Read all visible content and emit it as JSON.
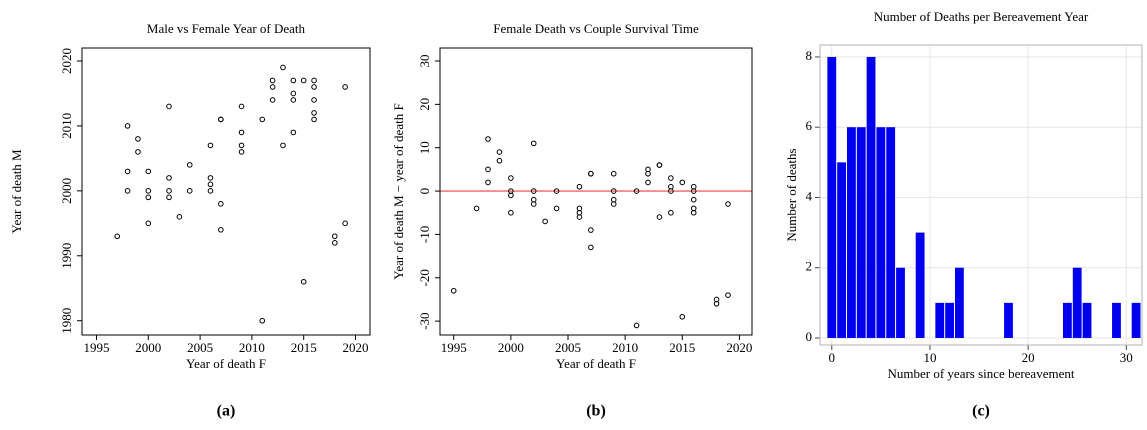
{
  "chart_data": [
    {
      "type": "scatter",
      "title": "Male vs Female Year of Death",
      "x_label": "Year of death F",
      "y_label": "Year of death M",
      "caption": "(a)",
      "x": [
        1997,
        1998,
        1998,
        1998,
        1999,
        1999,
        2000,
        2000,
        2000,
        2000,
        2002,
        2002,
        2002,
        2002,
        2003,
        2004,
        2004,
        2006,
        2006,
        2006,
        2006,
        2007,
        2007,
        2007,
        2007,
        2009,
        2009,
        2009,
        2009,
        2011,
        2011,
        2012,
        2012,
        2012,
        2013,
        2013,
        2014,
        2014,
        2014,
        2014,
        2015,
        2015,
        2016,
        2016,
        2016,
        2016,
        2016,
        2018,
        2018,
        2019,
        2019
      ],
      "values": [
        1993,
        2010,
        2003,
        2000,
        2008,
        2006,
        2003,
        2000,
        1999,
        1995,
        2013,
        2002,
        2000,
        1999,
        1996,
        2004,
        2000,
        2007,
        2002,
        2001,
        2000,
        2011,
        2011,
        1998,
        1994,
        2013,
        2009,
        2007,
        2006,
        2011,
        1980,
        2017,
        2016,
        2014,
        2019,
        2007,
        2017,
        2015,
        2014,
        2009,
        2017,
        1986,
        2017,
        2016,
        2014,
        2012,
        2011,
        1993,
        1992,
        2016,
        1995
      ],
      "color": "#000000",
      "xlim": [
        1993.6,
        2021.4
      ],
      "ylim": [
        1977.8,
        2022
      ],
      "xticks": [
        1995,
        2000,
        2005,
        2010,
        2015,
        2020
      ],
      "yticks": [
        1980,
        1990,
        2000,
        2010,
        2020
      ]
    },
    {
      "type": "scatter",
      "title": "Female Death vs Couple Survival Time",
      "x_label": "Year of death F",
      "y_label": "Year of death M − year of death F",
      "caption": "(b)",
      "x": [
        1995,
        1997,
        1998,
        1998,
        1998,
        1999,
        1999,
        2000,
        2000,
        2000,
        2000,
        2002,
        2002,
        2002,
        2002,
        2003,
        2004,
        2004,
        2006,
        2006,
        2006,
        2006,
        2007,
        2007,
        2007,
        2007,
        2009,
        2009,
        2009,
        2009,
        2011,
        2011,
        2012,
        2012,
        2012,
        2013,
        2013,
        2013,
        2014,
        2014,
        2014,
        2014,
        2015,
        2015,
        2016,
        2016,
        2016,
        2016,
        2016,
        2018,
        2018,
        2019,
        2019
      ],
      "values": [
        -23,
        -4,
        12,
        5,
        2,
        9,
        7,
        3,
        0,
        -1,
        -5,
        11,
        0,
        -2,
        -3,
        -7,
        0,
        -4,
        1,
        -4,
        -5,
        -6,
        4,
        4,
        -9,
        -13,
        4,
        0,
        -2,
        -3,
        0,
        -31,
        5,
        4,
        2,
        6,
        6,
        -6,
        3,
        1,
        0,
        -5,
        2,
        -29,
        1,
        0,
        -2,
        -4,
        -5,
        -25,
        -26,
        -3,
        -24
      ],
      "color": "#000000",
      "hline": 0,
      "hline_color": "#f04040",
      "xlim": [
        1993.8,
        2021.1
      ],
      "ylim": [
        -33.2,
        33
      ],
      "xticks": [
        1995,
        2000,
        2005,
        2010,
        2015,
        2020
      ],
      "yticks": [
        -30,
        -20,
        -10,
        0,
        10,
        20,
        30
      ]
    },
    {
      "type": "histogram",
      "title": "Number of Deaths per Bereavement Year",
      "x_label": "Number of years since bereavement",
      "y_label": "Number of deaths",
      "caption": "(c)",
      "bins": [
        -0.5,
        0.5,
        1.5,
        2.5,
        3.5,
        4.5,
        5.5,
        6.5,
        7.5,
        8.5,
        9.5,
        10.5,
        11.5,
        12.5,
        13.5,
        14.5,
        15.5,
        16.5,
        17.5,
        18.5,
        19.5,
        20.5,
        21.5,
        22.5,
        23.5,
        24.5,
        25.5,
        26.5,
        27.5,
        28.5,
        29.5,
        30.5,
        31.5
      ],
      "values": [
        8,
        5,
        6,
        6,
        8,
        6,
        6,
        2,
        0,
        3,
        0,
        1,
        1,
        2,
        0,
        0,
        0,
        0,
        1,
        0,
        0,
        0,
        0,
        0,
        1,
        2,
        1,
        0,
        0,
        1,
        0,
        1
      ],
      "color": "#0000ee",
      "grid": true,
      "xlim": [
        -1.2,
        31.6
      ],
      "ylim": [
        -0.2,
        8.34
      ],
      "xticks": [
        0,
        10,
        20,
        30
      ],
      "yticks": [
        0,
        2,
        4,
        6,
        8
      ]
    }
  ]
}
